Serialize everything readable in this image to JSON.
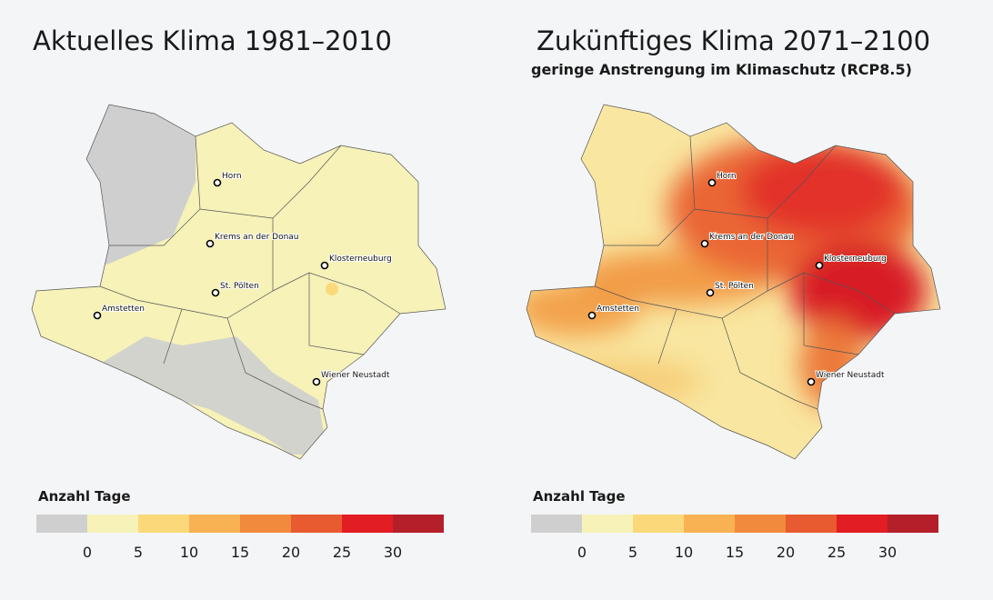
{
  "maps": [
    {
      "title": "Aktuelles Klima 1981–2010",
      "cities": [
        "Horn",
        "Krems an der Donau",
        "Klosterneuburg",
        "St. Pölten",
        "Amstetten",
        "Wiener Neustadt"
      ],
      "legend": {
        "title": "Anzahl Tage",
        "colors": [
          "#cfcfcf",
          "#f6f2b8",
          "#fbd97a",
          "#f8b253",
          "#f18a3c",
          "#e85a2f",
          "#e21d23",
          "#b51f2a"
        ],
        "ticks": [
          0,
          5,
          10,
          15,
          20,
          25,
          30
        ]
      }
    },
    {
      "title": "Zukünftiges Klima 2071–2100",
      "subtitle": "geringe Anstrengung im Klimaschutz (RCP8.5)",
      "cities": [
        "Horn",
        "Krems an der Donau",
        "Klosterneuburg",
        "St. Pölten",
        "Amstetten",
        "Wiener Neustadt"
      ],
      "legend": {
        "title": "Anzahl Tage",
        "colors": [
          "#cfcfcf",
          "#f6f2b8",
          "#fbd97a",
          "#f8b253",
          "#f18a3c",
          "#e85a2f",
          "#e21d23",
          "#b51f2a"
        ],
        "ticks": [
          0,
          5,
          10,
          15,
          20,
          25,
          30
        ]
      }
    }
  ]
}
